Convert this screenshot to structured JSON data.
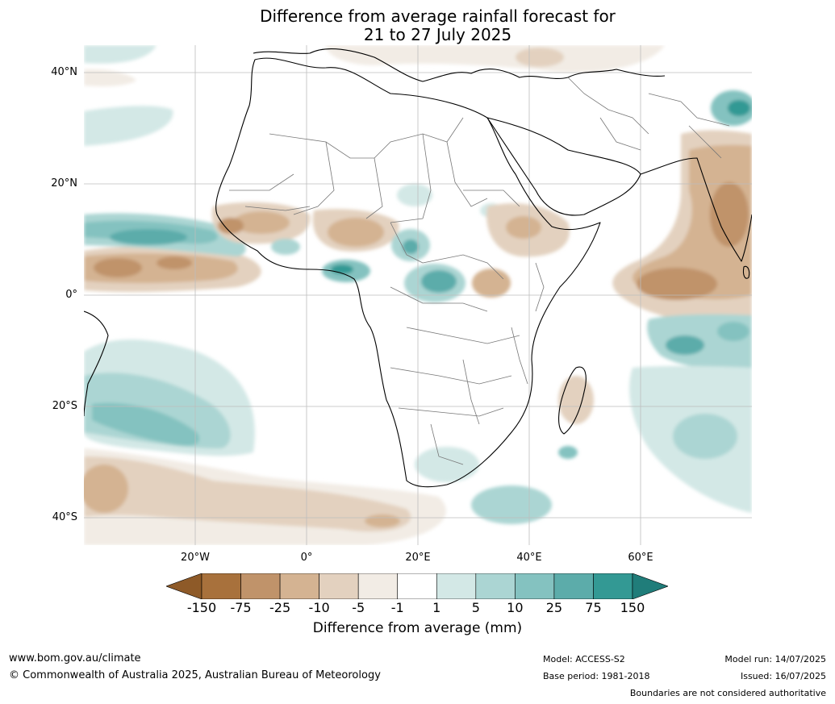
{
  "title": {
    "line1": "Difference from average rainfall forecast for",
    "line2": "21 to 27 July 2025"
  },
  "map": {
    "lat_labels": [
      "40°N",
      "20°N",
      "0°",
      "20°S",
      "40°S"
    ],
    "lon_labels": [
      "20°W",
      "0°",
      "20°E",
      "40°E",
      "60°E"
    ]
  },
  "colorbar": {
    "title": "Difference from average (mm)",
    "ticks": [
      "-150",
      "-75",
      "-25",
      "-10",
      "-5",
      "-1",
      "1",
      "5",
      "10",
      "25",
      "75",
      "150"
    ],
    "colors": [
      "#8e5a28",
      "#a8713c",
      "#c0936a",
      "#d4b392",
      "#e3d1bf",
      "#f2ece5",
      "#ffffff",
      "#d3e8e6",
      "#abd5d3",
      "#84c2c0",
      "#5cacaa",
      "#339994",
      "#207d7a"
    ]
  },
  "footer": {
    "url": "www.bom.gov.au/climate",
    "copyright": "© Commonwealth of Australia 2025, Australian Bureau of Meteorology",
    "model": "Model: ACCESS-S2",
    "base_period": "Base period: 1981-2018",
    "model_run": "Model run: 14/07/2025",
    "issued": "Issued: 16/07/2025",
    "disclaimer": "Boundaries are not considered authoritative"
  }
}
